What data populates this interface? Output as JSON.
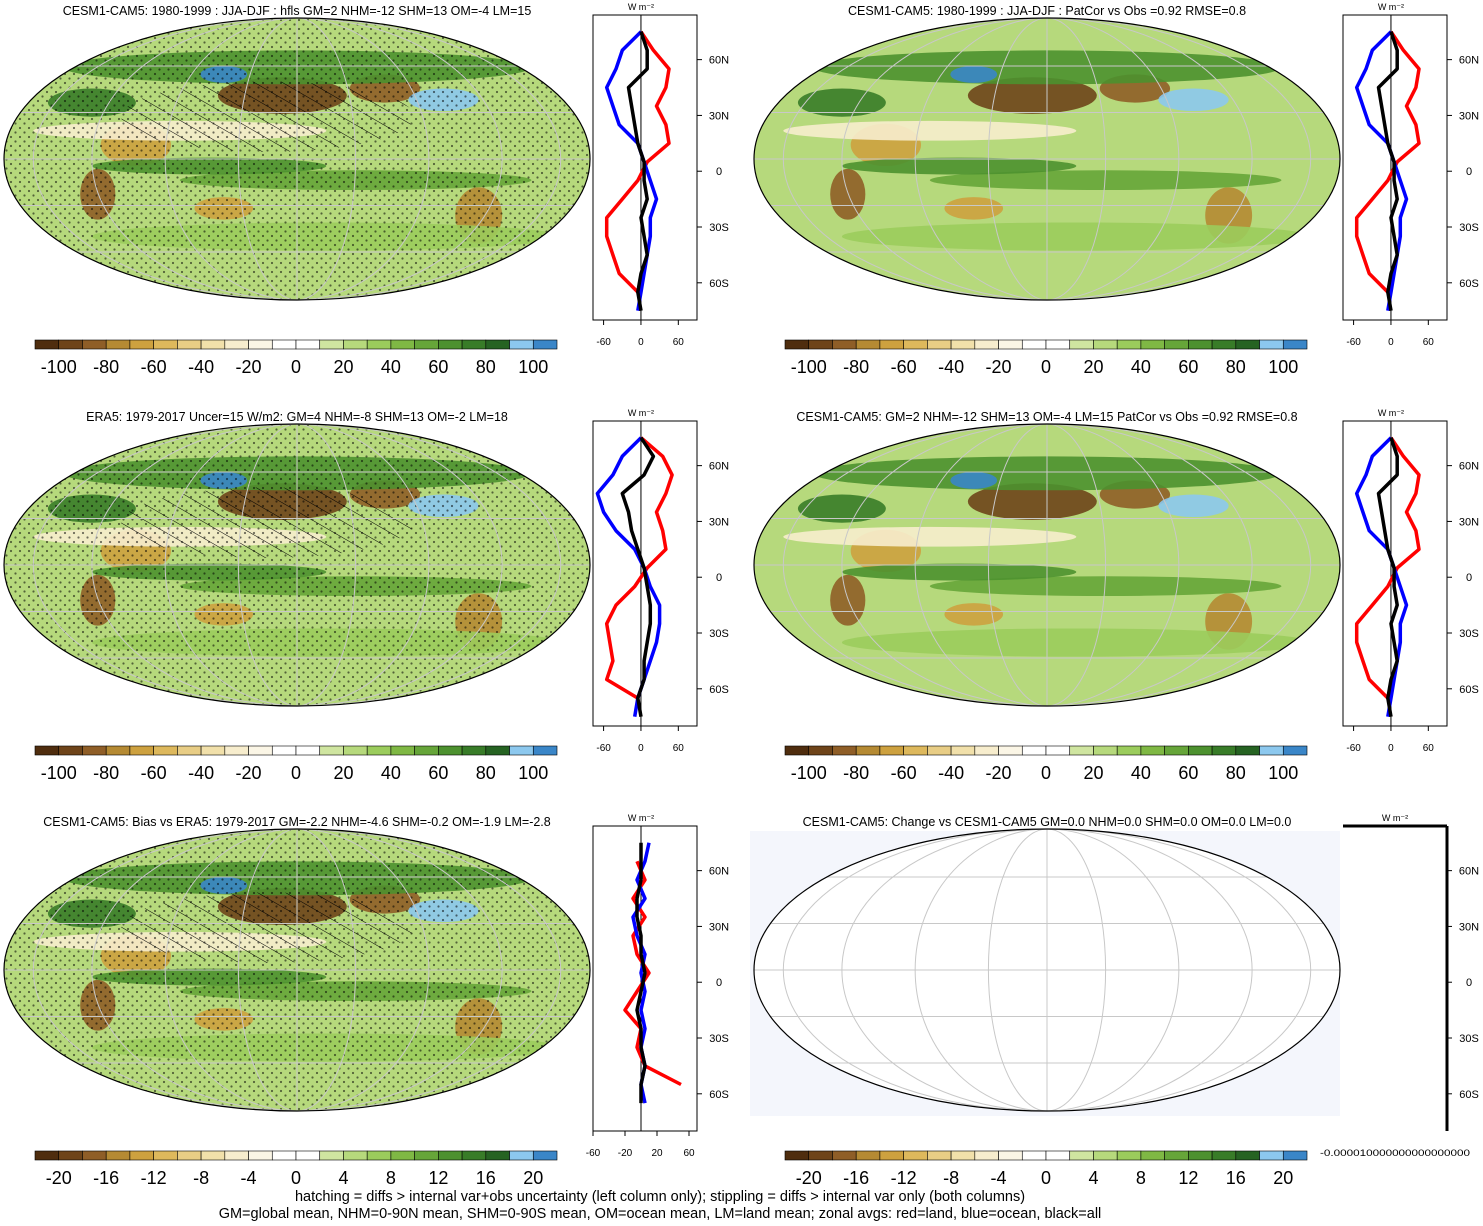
{
  "panels": [
    {
      "title": "CESM1-CAM5: 1980-1999 : JJA-DJF : hfls GM=2 NHM=-12 SHM=13 OM=-4 LM=15",
      "colorbar_labels": [
        -100,
        -80,
        -60,
        -40,
        -20,
        0,
        20,
        40,
        60,
        80,
        100
      ],
      "zonal": {
        "unit_label": "W m⁻²",
        "xlim": [
          -77,
          90
        ],
        "xticks": [
          -60,
          0,
          60
        ],
        "series": [
          {
            "color": "#ff0000",
            "values": [
              0,
              20,
              45,
              40,
              25,
              40,
              45,
              10,
              -5,
              -30,
              -55,
              -55,
              -45,
              -35,
              -5,
              null
            ]
          },
          {
            "color": "#0000ff",
            "values": [
              0,
              -30,
              -40,
              -55,
              -45,
              -35,
              -5,
              5,
              15,
              25,
              15,
              15,
              10,
              5,
              0,
              -5
            ]
          },
          {
            "color": "#000000",
            "values": [
              0,
              10,
              10,
              -20,
              -15,
              -10,
              -5,
              5,
              5,
              10,
              0,
              5,
              10,
              0,
              -5,
              0
            ]
          }
        ]
      }
    },
    {
      "title": "CESM1-CAM5: 1980-1999 : JJA-DJF : PatCor vs Obs =0.92 RMSE=0.8",
      "colorbar_labels": [
        -100,
        -80,
        -60,
        -40,
        -20,
        0,
        20,
        40,
        60,
        80,
        100
      ],
      "zonal": {
        "unit_label": "W m⁻²",
        "xlim": [
          -77,
          90
        ],
        "xticks": [
          -60,
          0,
          60
        ],
        "series": [
          {
            "color": "#ff0000",
            "values": [
              0,
              20,
              45,
              40,
              25,
              40,
              45,
              10,
              -5,
              -30,
              -55,
              -55,
              -45,
              -35,
              -5,
              null
            ]
          },
          {
            "color": "#0000ff",
            "values": [
              0,
              -30,
              -40,
              -55,
              -45,
              -35,
              -5,
              5,
              15,
              25,
              15,
              15,
              10,
              5,
              0,
              -5
            ]
          },
          {
            "color": "#000000",
            "values": [
              0,
              10,
              10,
              -20,
              -15,
              -10,
              -5,
              5,
              5,
              10,
              0,
              5,
              10,
              0,
              -5,
              0
            ]
          }
        ]
      }
    },
    {
      "title": "ERA5: 1979-2017 Uncer=15 W/m2: GM=4 NHM=-8 SHM=13 OM=-2 LM=18",
      "colorbar_labels": [
        -100,
        -80,
        -60,
        -40,
        -20,
        0,
        20,
        40,
        60,
        80,
        100
      ],
      "zonal": {
        "unit_label": "W m⁻²",
        "xlim": [
          -77,
          90
        ],
        "xticks": [
          -60,
          0,
          60
        ],
        "series": [
          {
            "color": "#ff0000",
            "values": [
              0,
              35,
              50,
              40,
              25,
              35,
              40,
              10,
              -10,
              -40,
              -55,
              -50,
              -45,
              -55,
              -5,
              null
            ]
          },
          {
            "color": "#0000ff",
            "values": [
              0,
              -30,
              -45,
              -70,
              -60,
              -40,
              -10,
              5,
              15,
              30,
              30,
              25,
              15,
              5,
              -5,
              -10
            ]
          },
          {
            "color": "#000000",
            "values": [
              0,
              20,
              5,
              -30,
              -20,
              -15,
              -5,
              5,
              10,
              15,
              15,
              10,
              5,
              5,
              -5,
              0
            ]
          }
        ]
      }
    },
    {
      "title": "CESM1-CAM5: GM=2 NHM=-12 SHM=13 OM=-4 LM=15 PatCor vs Obs =0.92 RMSE=0.8",
      "colorbar_labels": [
        -100,
        -80,
        -60,
        -40,
        -20,
        0,
        20,
        40,
        60,
        80,
        100
      ],
      "zonal": {
        "unit_label": "W m⁻²",
        "xlim": [
          -77,
          90
        ],
        "xticks": [
          -60,
          0,
          60
        ],
        "series": [
          {
            "color": "#ff0000",
            "values": [
              0,
              20,
              45,
              40,
              25,
              40,
              45,
              10,
              -5,
              -30,
              -55,
              -55,
              -45,
              -35,
              -5,
              null
            ]
          },
          {
            "color": "#0000ff",
            "values": [
              0,
              -30,
              -40,
              -55,
              -45,
              -35,
              -5,
              5,
              15,
              25,
              15,
              15,
              10,
              5,
              0,
              -5
            ]
          },
          {
            "color": "#000000",
            "values": [
              0,
              10,
              10,
              -20,
              -15,
              -10,
              -5,
              5,
              5,
              10,
              0,
              5,
              10,
              0,
              -5,
              0
            ]
          }
        ]
      }
    },
    {
      "title": "CESM1-CAM5: Bias vs ERA5: 1979-2017 GM=-2.2 NHM=-4.6 SHM=-0.2 OM=-1.9 LM=-2.8",
      "colorbar_labels": [
        -20,
        -16,
        -12,
        -8,
        -4,
        0,
        4,
        8,
        12,
        16,
        20
      ],
      "zonal": {
        "unit_label": "W m⁻²",
        "xlim": [
          -60,
          70
        ],
        "xticks": [
          -60,
          -20,
          20,
          60
        ],
        "series": [
          {
            "color": "#ff0000",
            "values": [
              null,
              -5,
              5,
              -10,
              5,
              -10,
              -5,
              10,
              -5,
              -20,
              0,
              -5,
              5,
              50,
              null,
              null
            ]
          },
          {
            "color": "#0000ff",
            "values": [
              10,
              5,
              -5,
              5,
              -10,
              -5,
              5,
              0,
              5,
              0,
              5,
              0,
              5,
              0,
              5,
              null
            ]
          },
          {
            "color": "#000000",
            "values": [
              0,
              0,
              0,
              -5,
              -5,
              0,
              0,
              5,
              0,
              -5,
              0,
              0,
              5,
              0,
              0,
              null
            ]
          }
        ]
      }
    },
    {
      "title": "CESM1-CAM5: Change vs CESM1-CAM5 GM=0.0 NHM=0.0 SHM=0.0 OM=0.0 LM=0.0",
      "colorbar_labels": [
        -20,
        -16,
        -12,
        -8,
        -4,
        0,
        4,
        8,
        12,
        16,
        20
      ],
      "map_fill": false,
      "zonal": {
        "unit_label": "W m⁻²",
        "xlim": [
          -1,
          1
        ],
        "xtick_text": "-0.000010000000000000000"
      }
    }
  ],
  "zonal_lat": [
    75,
    65,
    55,
    45,
    35,
    25,
    15,
    5,
    -5,
    -15,
    -25,
    -35,
    -45,
    -55,
    -65,
    -75
  ],
  "zonal_ylim": [
    -80,
    84
  ],
  "zonal_yticks": [
    {
      "value": 60,
      "label": "60N"
    },
    {
      "value": 30,
      "label": "30N"
    },
    0,
    {
      "value": -30,
      "label": "30S"
    },
    {
      "value": -60,
      "label": "60S"
    }
  ],
  "colorbar_colors": [
    "#4f2d0e",
    "#6e4419",
    "#8f5e27",
    "#b58a33",
    "#cda13f",
    "#ddb85c",
    "#e8cd85",
    "#f1e0aa",
    "#f7edcd",
    "#fbf6e6",
    "#ffffff",
    "#ffffff",
    "#cfe5a0",
    "#b6d97c",
    "#9bcc5c",
    "#7fb844",
    "#66a539",
    "#4d912f",
    "#387c28",
    "#266322",
    "#8cc8ee",
    "#3a86c8"
  ],
  "footer": [
    "hatching = diffs > internal var+obs uncertainty (left column only); stippling = diffs > internal var only (both columns)",
    "GM=global mean, NHM=0-90N mean, SHM=0-90S mean, OM=ocean mean, LM=land mean; zonal avgs: red=land, blue=ocean, black=all"
  ]
}
